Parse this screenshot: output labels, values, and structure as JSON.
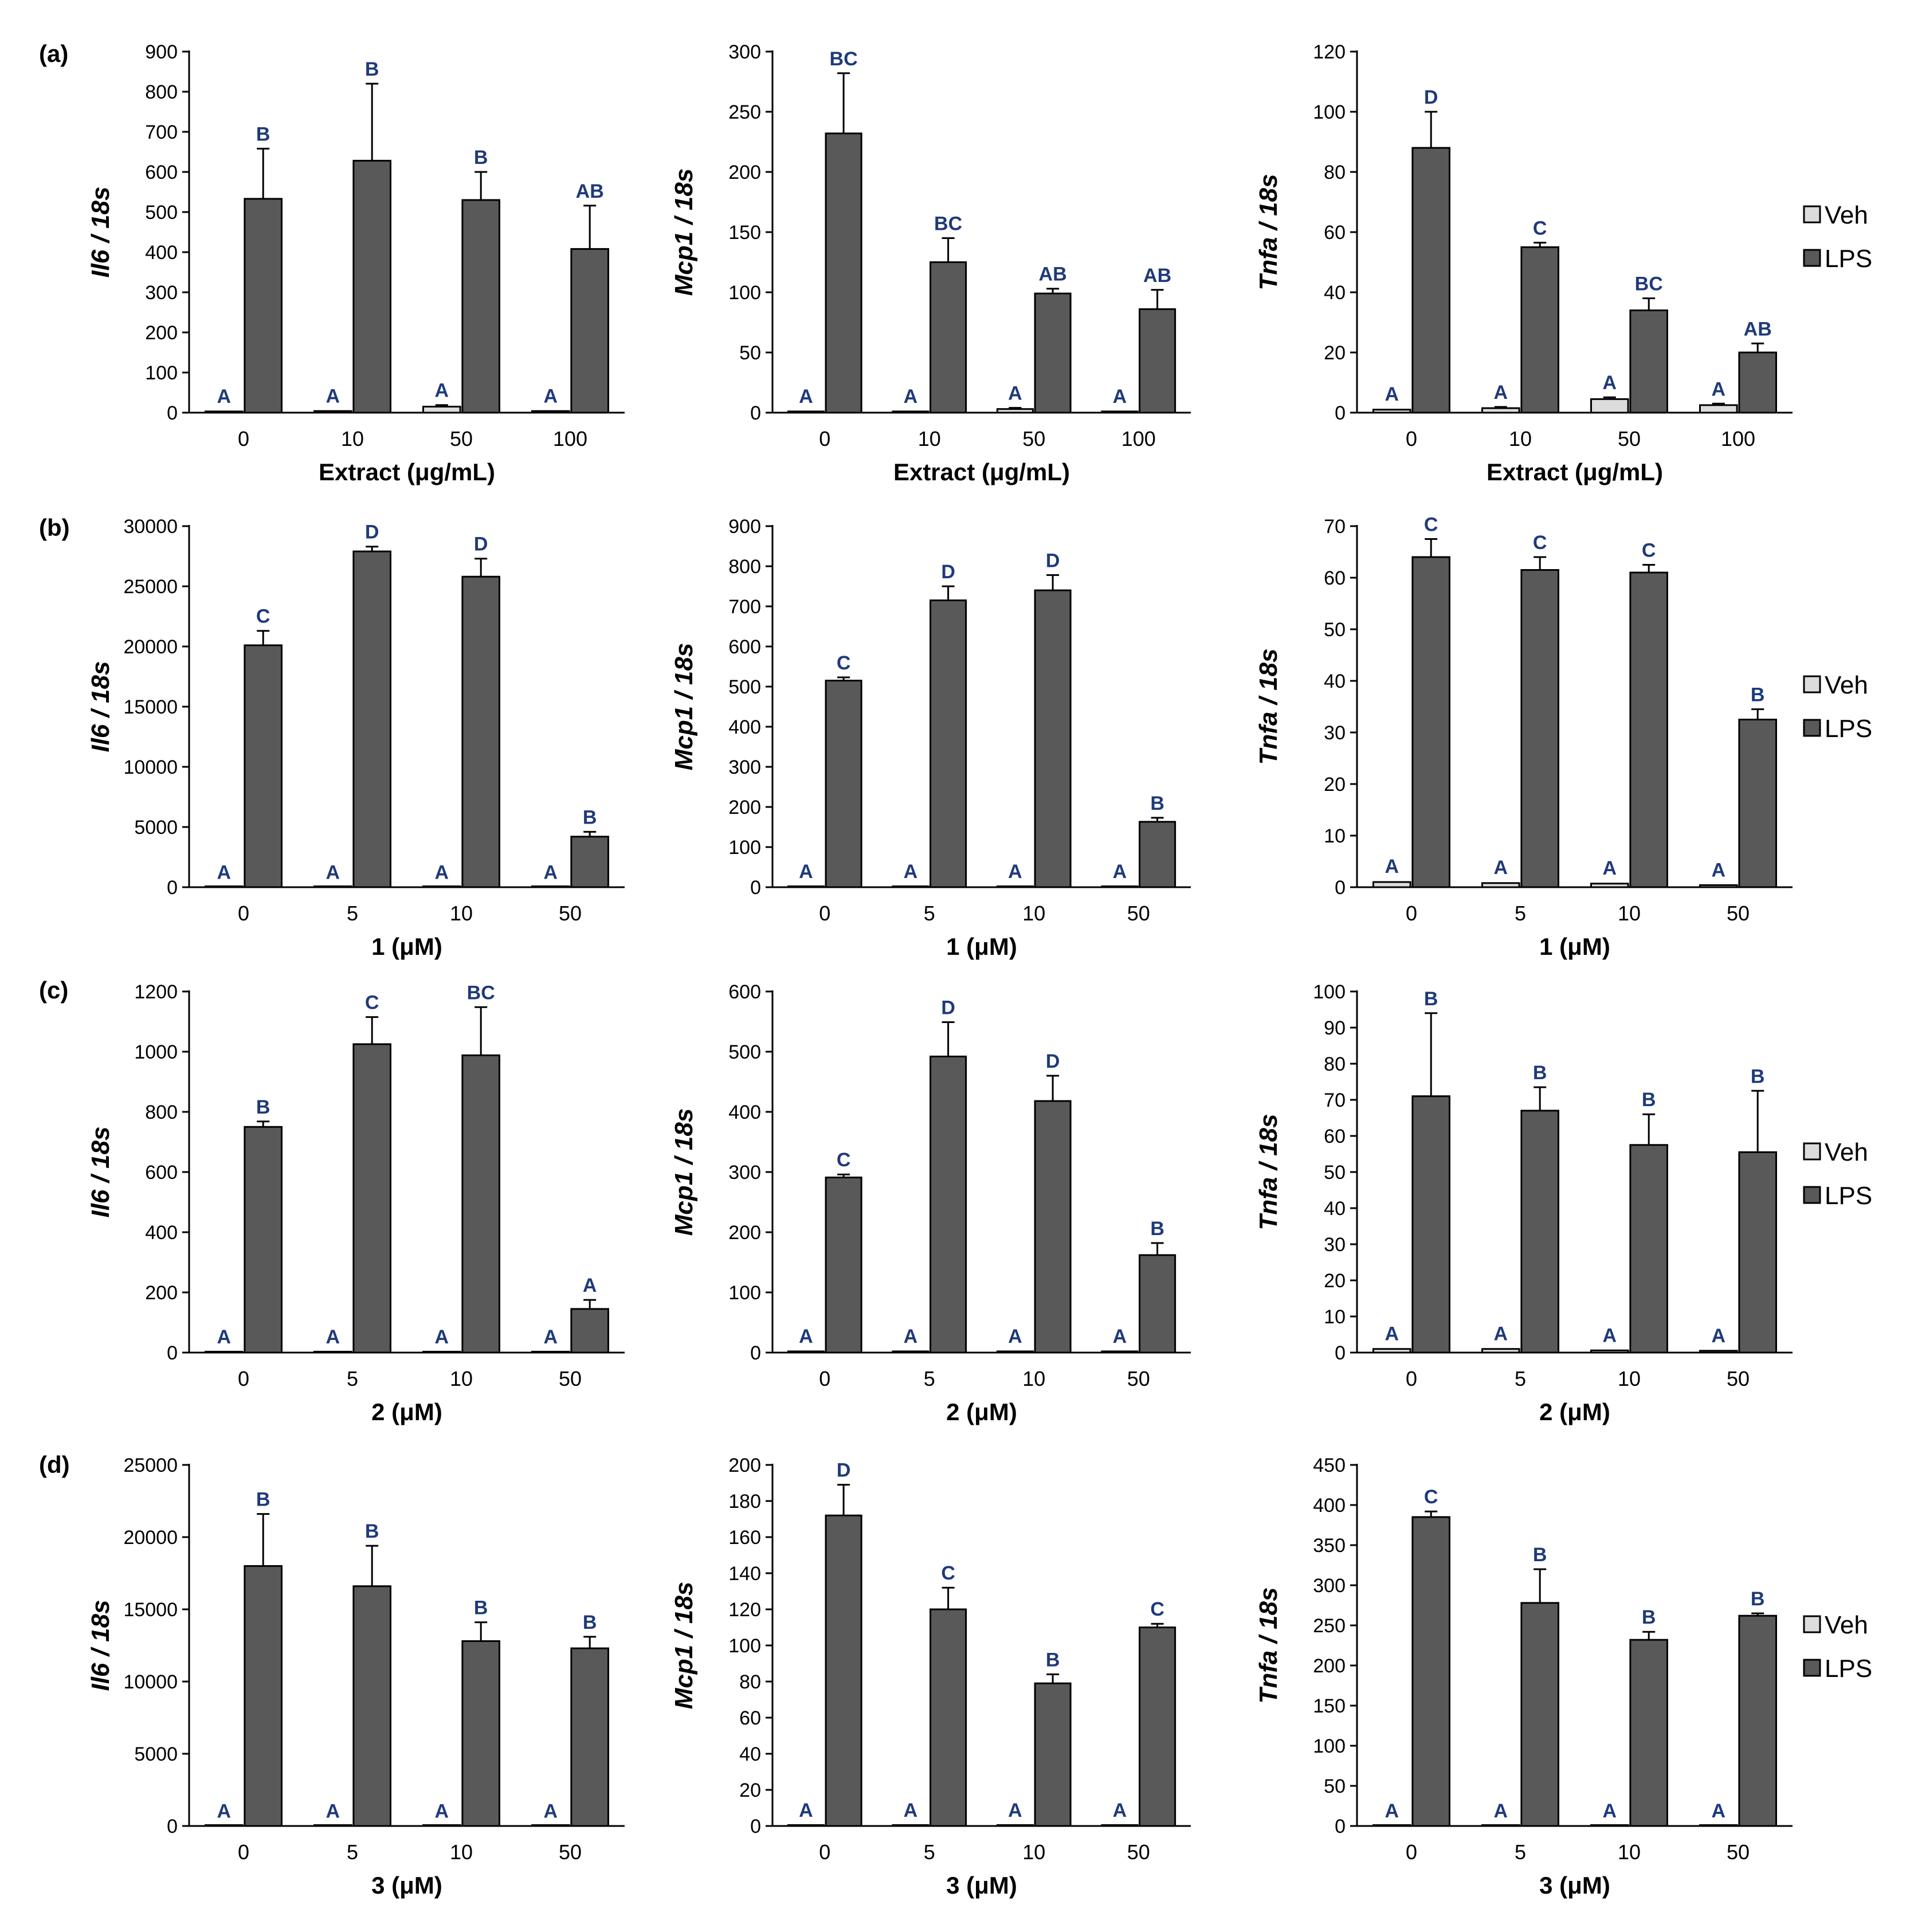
{
  "colors": {
    "veh": "#dcdcdc",
    "lps": "#595959",
    "sig": "#1f3a7a",
    "axis": "#000000"
  },
  "legend": [
    "Veh",
    "LPS"
  ],
  "rows": [
    {
      "panel_label": "(a)"
    },
    {
      "panel_label": "(b)"
    },
    {
      "panel_label": "(c)"
    },
    {
      "panel_label": "(d)"
    }
  ],
  "chart_data": [
    {
      "type": "bar",
      "row": 0,
      "col": 0,
      "ylabel": "Il6 / 18s",
      "xlabel": "Extract (μg/mL)",
      "categories": [
        "0",
        "10",
        "50",
        "100"
      ],
      "ylim": [
        0,
        900
      ],
      "yticks": [
        "0",
        "100",
        "200",
        "300",
        "400",
        "500",
        "600",
        "700",
        "800",
        "900"
      ],
      "series": [
        {
          "name": "Veh",
          "values": [
            3,
            4,
            15,
            4
          ],
          "errors": [
            1,
            1,
            4,
            1
          ],
          "labels": [
            "A",
            "A",
            "A",
            "A"
          ]
        },
        {
          "name": "LPS",
          "values": [
            533,
            628,
            530,
            408
          ],
          "errors": [
            125,
            192,
            70,
            108
          ],
          "labels": [
            "B",
            "B",
            "B",
            "AB"
          ]
        }
      ]
    },
    {
      "type": "bar",
      "row": 0,
      "col": 1,
      "ylabel": "Mcp1 / 18s",
      "xlabel": "Extract (μg/mL)",
      "categories": [
        "0",
        "10",
        "50",
        "100"
      ],
      "ylim": [
        0,
        300
      ],
      "yticks": [
        "0",
        "50",
        "100",
        "150",
        "200",
        "250",
        "300"
      ],
      "series": [
        {
          "name": "Veh",
          "values": [
            1,
            1,
            3,
            1
          ],
          "errors": [
            0.5,
            0.5,
            1,
            0.5
          ],
          "labels": [
            "A",
            "A",
            "A",
            "A"
          ]
        },
        {
          "name": "LPS",
          "values": [
            232,
            125,
            99,
            86
          ],
          "errors": [
            50,
            20,
            4,
            16
          ],
          "labels": [
            "BC",
            "BC",
            "AB",
            "AB"
          ]
        }
      ]
    },
    {
      "type": "bar",
      "row": 0,
      "col": 2,
      "ylabel": "Tnfa / 18s",
      "xlabel": "Extract (μg/mL)",
      "categories": [
        "0",
        "10",
        "50",
        "100"
      ],
      "ylim": [
        0,
        120
      ],
      "yticks": [
        "0",
        "20",
        "40",
        "60",
        "80",
        "100",
        "120"
      ],
      "series": [
        {
          "name": "Veh",
          "values": [
            1,
            1.5,
            4.5,
            2.5
          ],
          "errors": [
            0.3,
            0.4,
            0.6,
            0.5
          ],
          "labels": [
            "A",
            "A",
            "A",
            "A"
          ]
        },
        {
          "name": "LPS",
          "values": [
            88,
            55,
            34,
            20
          ],
          "errors": [
            12,
            1.5,
            4,
            3
          ],
          "labels": [
            "D",
            "C",
            "BC",
            "AB"
          ]
        }
      ]
    },
    {
      "type": "bar",
      "row": 1,
      "col": 0,
      "ylabel": "Il6 / 18s",
      "xlabel": "1 (μM)",
      "categories": [
        "0",
        "5",
        "10",
        "50"
      ],
      "ylim": [
        0,
        30000
      ],
      "yticks": [
        "0",
        "5000",
        "10000",
        "15000",
        "20000",
        "25000",
        "30000"
      ],
      "series": [
        {
          "name": "Veh",
          "values": [
            15,
            15,
            15,
            15
          ],
          "errors": [
            5,
            5,
            5,
            5
          ],
          "labels": [
            "A",
            "A",
            "A",
            "A"
          ]
        },
        {
          "name": "LPS",
          "values": [
            20100,
            27900,
            25800,
            4200
          ],
          "errors": [
            1200,
            400,
            1500,
            400
          ],
          "labels": [
            "C",
            "D",
            "D",
            "B"
          ]
        }
      ]
    },
    {
      "type": "bar",
      "row": 1,
      "col": 1,
      "ylabel": "Mcp1 / 18s",
      "xlabel": "1 (μM)",
      "categories": [
        "0",
        "5",
        "10",
        "50"
      ],
      "ylim": [
        0,
        900
      ],
      "yticks": [
        "0",
        "100",
        "200",
        "300",
        "400",
        "500",
        "600",
        "700",
        "800",
        "900"
      ],
      "series": [
        {
          "name": "Veh",
          "values": [
            2,
            2,
            2,
            2
          ],
          "errors": [
            1,
            1,
            1,
            1
          ],
          "labels": [
            "A",
            "A",
            "A",
            "A"
          ]
        },
        {
          "name": "LPS",
          "values": [
            515,
            715,
            740,
            163
          ],
          "errors": [
            8,
            35,
            38,
            10
          ],
          "labels": [
            "C",
            "D",
            "D",
            "B"
          ]
        }
      ]
    },
    {
      "type": "bar",
      "row": 1,
      "col": 2,
      "ylabel": "Tnfa / 18s",
      "xlabel": "1 (μM)",
      "categories": [
        "0",
        "5",
        "10",
        "50"
      ],
      "ylim": [
        0,
        70
      ],
      "yticks": [
        "0",
        "10",
        "20",
        "30",
        "40",
        "50",
        "60",
        "70"
      ],
      "series": [
        {
          "name": "Veh",
          "values": [
            1,
            0.8,
            0.7,
            0.4
          ],
          "errors": [
            0.2,
            0.2,
            0.2,
            0.1
          ],
          "labels": [
            "A",
            "A",
            "A",
            "A"
          ]
        },
        {
          "name": "LPS",
          "values": [
            64,
            61.5,
            61,
            32.5
          ],
          "errors": [
            3.5,
            2.5,
            1.5,
            2
          ],
          "labels": [
            "C",
            "C",
            "C",
            "B"
          ]
        }
      ]
    },
    {
      "type": "bar",
      "row": 2,
      "col": 0,
      "ylabel": "Il6 / 18s",
      "xlabel": "2 (μM)",
      "categories": [
        "0",
        "5",
        "10",
        "50"
      ],
      "ylim": [
        0,
        1200
      ],
      "yticks": [
        "0",
        "200",
        "400",
        "600",
        "800",
        "1000",
        "1200"
      ],
      "series": [
        {
          "name": "Veh",
          "values": [
            3,
            3,
            3,
            3
          ],
          "errors": [
            1,
            1,
            1,
            1
          ],
          "labels": [
            "A",
            "A",
            "A",
            "A"
          ]
        },
        {
          "name": "LPS",
          "values": [
            750,
            1025,
            988,
            145
          ],
          "errors": [
            18,
            90,
            160,
            30
          ],
          "labels": [
            "B",
            "C",
            "BC",
            "A"
          ]
        }
      ]
    },
    {
      "type": "bar",
      "row": 2,
      "col": 1,
      "ylabel": "Mcp1 / 18s",
      "xlabel": "2 (μM)",
      "categories": [
        "0",
        "5",
        "10",
        "50"
      ],
      "ylim": [
        0,
        600
      ],
      "yticks": [
        "0",
        "100",
        "200",
        "300",
        "400",
        "500",
        "600"
      ],
      "series": [
        {
          "name": "Veh",
          "values": [
            2,
            2,
            2,
            2
          ],
          "errors": [
            1,
            1,
            1,
            1
          ],
          "labels": [
            "A",
            "A",
            "A",
            "A"
          ]
        },
        {
          "name": "LPS",
          "values": [
            291,
            492,
            418,
            162
          ],
          "errors": [
            5,
            57,
            42,
            20
          ],
          "labels": [
            "C",
            "D",
            "D",
            "B"
          ]
        }
      ]
    },
    {
      "type": "bar",
      "row": 2,
      "col": 2,
      "ylabel": "Tnfa / 18s",
      "xlabel": "2 (μM)",
      "categories": [
        "0",
        "5",
        "10",
        "50"
      ],
      "ylim": [
        0,
        100
      ],
      "yticks": [
        "0",
        "10",
        "20",
        "30",
        "40",
        "50",
        "60",
        "70",
        "80",
        "90",
        "100"
      ],
      "series": [
        {
          "name": "Veh",
          "values": [
            1,
            1,
            0.6,
            0.5
          ],
          "errors": [
            0.2,
            0.2,
            0.1,
            0.1
          ],
          "labels": [
            "A",
            "A",
            "A",
            "A"
          ]
        },
        {
          "name": "LPS",
          "values": [
            71,
            67,
            57.5,
            55.5
          ],
          "errors": [
            23,
            6.5,
            8.5,
            17
          ],
          "labels": [
            "B",
            "B",
            "B",
            "B"
          ]
        }
      ]
    },
    {
      "type": "bar",
      "row": 3,
      "col": 0,
      "ylabel": "Il6 / 18s",
      "xlabel": "3 (μM)",
      "categories": [
        "0",
        "5",
        "10",
        "50"
      ],
      "ylim": [
        0,
        25000
      ],
      "yticks": [
        "0",
        "5000",
        "10000",
        "15000",
        "20000",
        "25000"
      ],
      "series": [
        {
          "name": "Veh",
          "values": [
            15,
            15,
            15,
            15
          ],
          "errors": [
            5,
            5,
            5,
            5
          ],
          "labels": [
            "A",
            "A",
            "A",
            "A"
          ]
        },
        {
          "name": "LPS",
          "values": [
            18000,
            16600,
            12800,
            12300
          ],
          "errors": [
            3600,
            2800,
            1300,
            800
          ],
          "labels": [
            "B",
            "B",
            "B",
            "B"
          ]
        }
      ]
    },
    {
      "type": "bar",
      "row": 3,
      "col": 1,
      "ylabel": "Mcp1 / 18s",
      "xlabel": "3 (μM)",
      "categories": [
        "0",
        "5",
        "10",
        "50"
      ],
      "ylim": [
        0,
        200
      ],
      "yticks": [
        "0",
        "20",
        "40",
        "60",
        "80",
        "100",
        "120",
        "140",
        "160",
        "180",
        "200"
      ],
      "series": [
        {
          "name": "Veh",
          "values": [
            0.5,
            0.5,
            0.5,
            0.5
          ],
          "errors": [
            0.2,
            0.2,
            0.2,
            0.2
          ],
          "labels": [
            "A",
            "A",
            "A",
            "A"
          ]
        },
        {
          "name": "LPS",
          "values": [
            172,
            120,
            79,
            110
          ],
          "errors": [
            17,
            12,
            5,
            2
          ],
          "labels": [
            "D",
            "C",
            "B",
            "C"
          ]
        }
      ]
    },
    {
      "type": "bar",
      "row": 3,
      "col": 2,
      "ylabel": "Tnfa / 18s",
      "xlabel": "3 (μM)",
      "categories": [
        "0",
        "5",
        "10",
        "50"
      ],
      "ylim": [
        0,
        450
      ],
      "yticks": [
        "0",
        "50",
        "100",
        "150",
        "200",
        "250",
        "300",
        "350",
        "400",
        "450"
      ],
      "series": [
        {
          "name": "Veh",
          "values": [
            0.5,
            0.5,
            0.5,
            0.5
          ],
          "errors": [
            0.2,
            0.2,
            0.2,
            0.2
          ],
          "labels": [
            "A",
            "A",
            "A",
            "A"
          ]
        },
        {
          "name": "LPS",
          "values": [
            385,
            278,
            232,
            262
          ],
          "errors": [
            7,
            42,
            10,
            3
          ],
          "labels": [
            "C",
            "B",
            "B",
            "B"
          ]
        }
      ]
    }
  ]
}
